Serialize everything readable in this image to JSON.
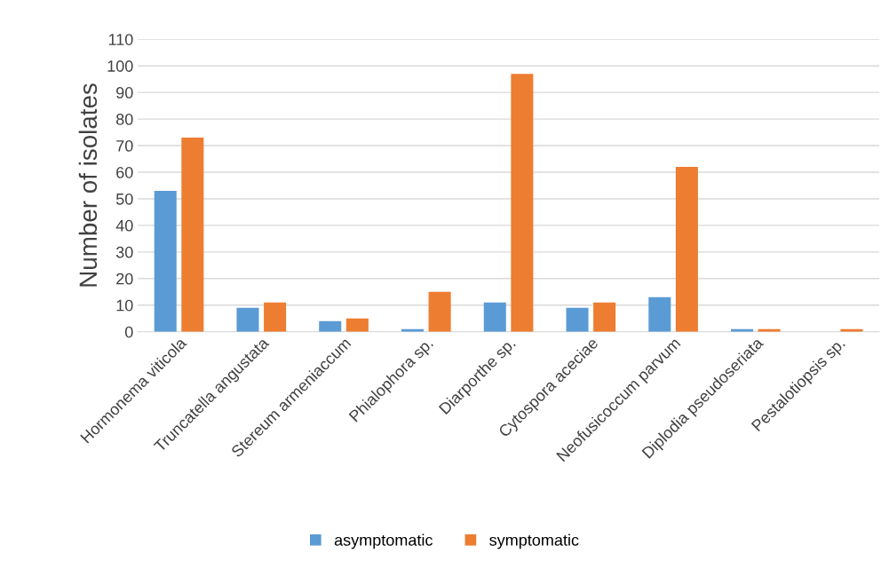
{
  "chart_data": {
    "type": "bar",
    "ylabel": "Number of isolates",
    "categories": [
      "Hormonema viticola",
      "Truncatella angustata",
      "Stereum armeniaccum",
      "Phialophora sp.",
      "Diarporthe sp.",
      "Cytospora aceciae",
      "Neofusicoccum parvum",
      "Diplodia pseudoseriata",
      "Pestalotiopsis sp."
    ],
    "series": [
      {
        "name": "asymptomatic",
        "color": "#5b9bd5",
        "values": [
          53,
          9,
          4,
          1,
          11,
          9,
          13,
          1,
          0
        ]
      },
      {
        "name": "symptomatic",
        "color": "#ed7d31",
        "values": [
          73,
          11,
          5,
          15,
          97,
          11,
          62,
          1,
          1
        ]
      }
    ],
    "ylim": [
      0,
      110
    ],
    "yticks": [
      0,
      10,
      20,
      30,
      40,
      50,
      60,
      70,
      80,
      90,
      100,
      110
    ],
    "grid": "y",
    "legend": "bottom"
  }
}
